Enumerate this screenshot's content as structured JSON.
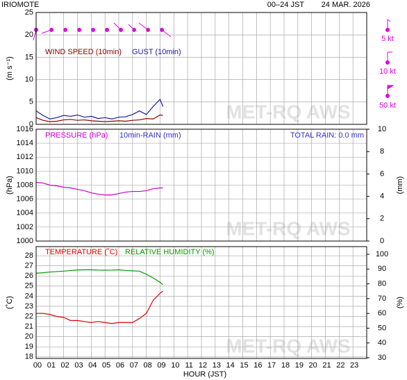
{
  "header": {
    "station": "IRIOMOTE",
    "period": "00–24 JST",
    "date": "24 MAR. 2026"
  },
  "watermark": "MET-RQ AWS",
  "wind_barb_legend": [
    "5 kt",
    "10 kt",
    "50 kt"
  ],
  "chart_data": [
    {
      "type": "line",
      "ylabel": "(m s⁻¹)",
      "x": [
        0,
        0.5,
        1,
        1.5,
        2,
        2.5,
        3,
        3.5,
        4,
        4.5,
        5,
        5.5,
        6,
        6.5,
        7,
        7.5,
        8,
        8.5,
        9,
        9.2
      ],
      "series": [
        {
          "name": "WIND SPEED (10min)",
          "color": "#8b0000",
          "values": [
            1.5,
            0.9,
            0.6,
            0.7,
            1.0,
            1.1,
            0.9,
            1.0,
            0.8,
            0.7,
            0.6,
            0.7,
            0.8,
            0.7,
            0.9,
            1.0,
            1.3,
            1.2,
            2.1,
            2.0
          ]
        },
        {
          "name": "GUST (10min)",
          "color": "#1a1aa0",
          "values": [
            3.0,
            2.0,
            1.2,
            1.5,
            2.0,
            1.8,
            2.1,
            1.6,
            1.8,
            1.3,
            1.5,
            1.2,
            1.6,
            1.7,
            2.2,
            3.0,
            2.2,
            4.0,
            5.6,
            4.0
          ]
        }
      ],
      "ylim": [
        0,
        25
      ],
      "yticks": [
        0,
        5,
        10,
        15,
        20,
        25
      ],
      "grid": true
    },
    {
      "type": "line",
      "ylabel": "(hPa)",
      "y2label": "(mm)",
      "annotation": "TOTAL RAIN: 0.0 mm",
      "x": [
        0,
        0.5,
        1,
        1.5,
        2,
        2.5,
        3,
        3.5,
        4,
        4.5,
        5,
        5.5,
        6,
        6.5,
        7,
        7.5,
        8,
        8.5,
        9,
        9.2
      ],
      "series": [
        {
          "name": "PRESSURE (hPa)",
          "color": "#cc00cc",
          "values": [
            1008.4,
            1008.3,
            1008.0,
            1007.9,
            1007.7,
            1007.6,
            1007.4,
            1007.2,
            1006.9,
            1006.7,
            1006.6,
            1006.6,
            1006.8,
            1007.0,
            1007.1,
            1007.1,
            1007.2,
            1007.5,
            1007.6,
            1007.6
          ]
        },
        {
          "name": "10min-RAIN (mm)",
          "color": "#3333cc",
          "axis": "y2",
          "style": "bar",
          "values": [
            0,
            0,
            0,
            0,
            0,
            0,
            0,
            0,
            0,
            0,
            0,
            0,
            0,
            0,
            0,
            0,
            0,
            0,
            0,
            0
          ]
        }
      ],
      "ylim": [
        1000,
        1016
      ],
      "yticks": [
        1000,
        1002,
        1004,
        1006,
        1008,
        1010,
        1012,
        1014,
        1016
      ],
      "y2lim": [
        0,
        10
      ],
      "y2ticks": [
        0,
        2,
        4,
        6,
        8,
        10
      ],
      "grid": true
    },
    {
      "type": "line",
      "ylabel": "(˚C)",
      "y2label": "(%)",
      "xlabel": "HOUR (JST)",
      "x": [
        0,
        0.5,
        1,
        1.5,
        2,
        2.5,
        3,
        3.5,
        4,
        4.5,
        5,
        5.5,
        6,
        6.5,
        7,
        7.5,
        8,
        8.5,
        9,
        9.2
      ],
      "series": [
        {
          "name": "TEMPERATURE (˚C)",
          "color": "#e00000",
          "values": [
            22.3,
            22.3,
            22.2,
            22.0,
            21.9,
            21.6,
            21.6,
            21.5,
            21.4,
            21.5,
            21.4,
            21.3,
            21.4,
            21.4,
            21.4,
            21.8,
            22.3,
            23.6,
            24.3,
            24.5
          ]
        },
        {
          "name": "RELATIVE HUMIDITY (%)",
          "color": "#009900",
          "axis": "y2",
          "values": [
            87.2,
            87.5,
            88,
            88.3,
            88.6,
            89,
            89.4,
            89.5,
            89.5,
            89.3,
            89.2,
            89.3,
            89.5,
            89,
            88.8,
            88.6,
            86.5,
            84,
            81,
            79.5
          ]
        }
      ],
      "xlim": [
        0,
        24
      ],
      "xticks": [
        {
          "value": 0,
          "label": "00"
        },
        {
          "value": 1,
          "label": "01"
        },
        {
          "value": 2,
          "label": "02"
        },
        {
          "value": 3,
          "label": "03"
        },
        {
          "value": 4,
          "label": "04"
        },
        {
          "value": 5,
          "label": "05"
        },
        {
          "value": 6,
          "label": "06"
        },
        {
          "value": 7,
          "label": "07"
        },
        {
          "value": 8,
          "label": "08"
        },
        {
          "value": 9,
          "label": "09"
        },
        10,
        11,
        12,
        13,
        14,
        15,
        16,
        17,
        18,
        19,
        20,
        21,
        22,
        23
      ],
      "ylim": [
        17.85,
        28.9
      ],
      "yticks": [
        18,
        19,
        20,
        21,
        22,
        23,
        24,
        25,
        26,
        27,
        28
      ],
      "y2lim": [
        29.5,
        105.2
      ],
      "y2ticks": [
        30,
        40,
        50,
        60,
        70,
        80,
        90,
        100
      ],
      "grid": true
    }
  ]
}
